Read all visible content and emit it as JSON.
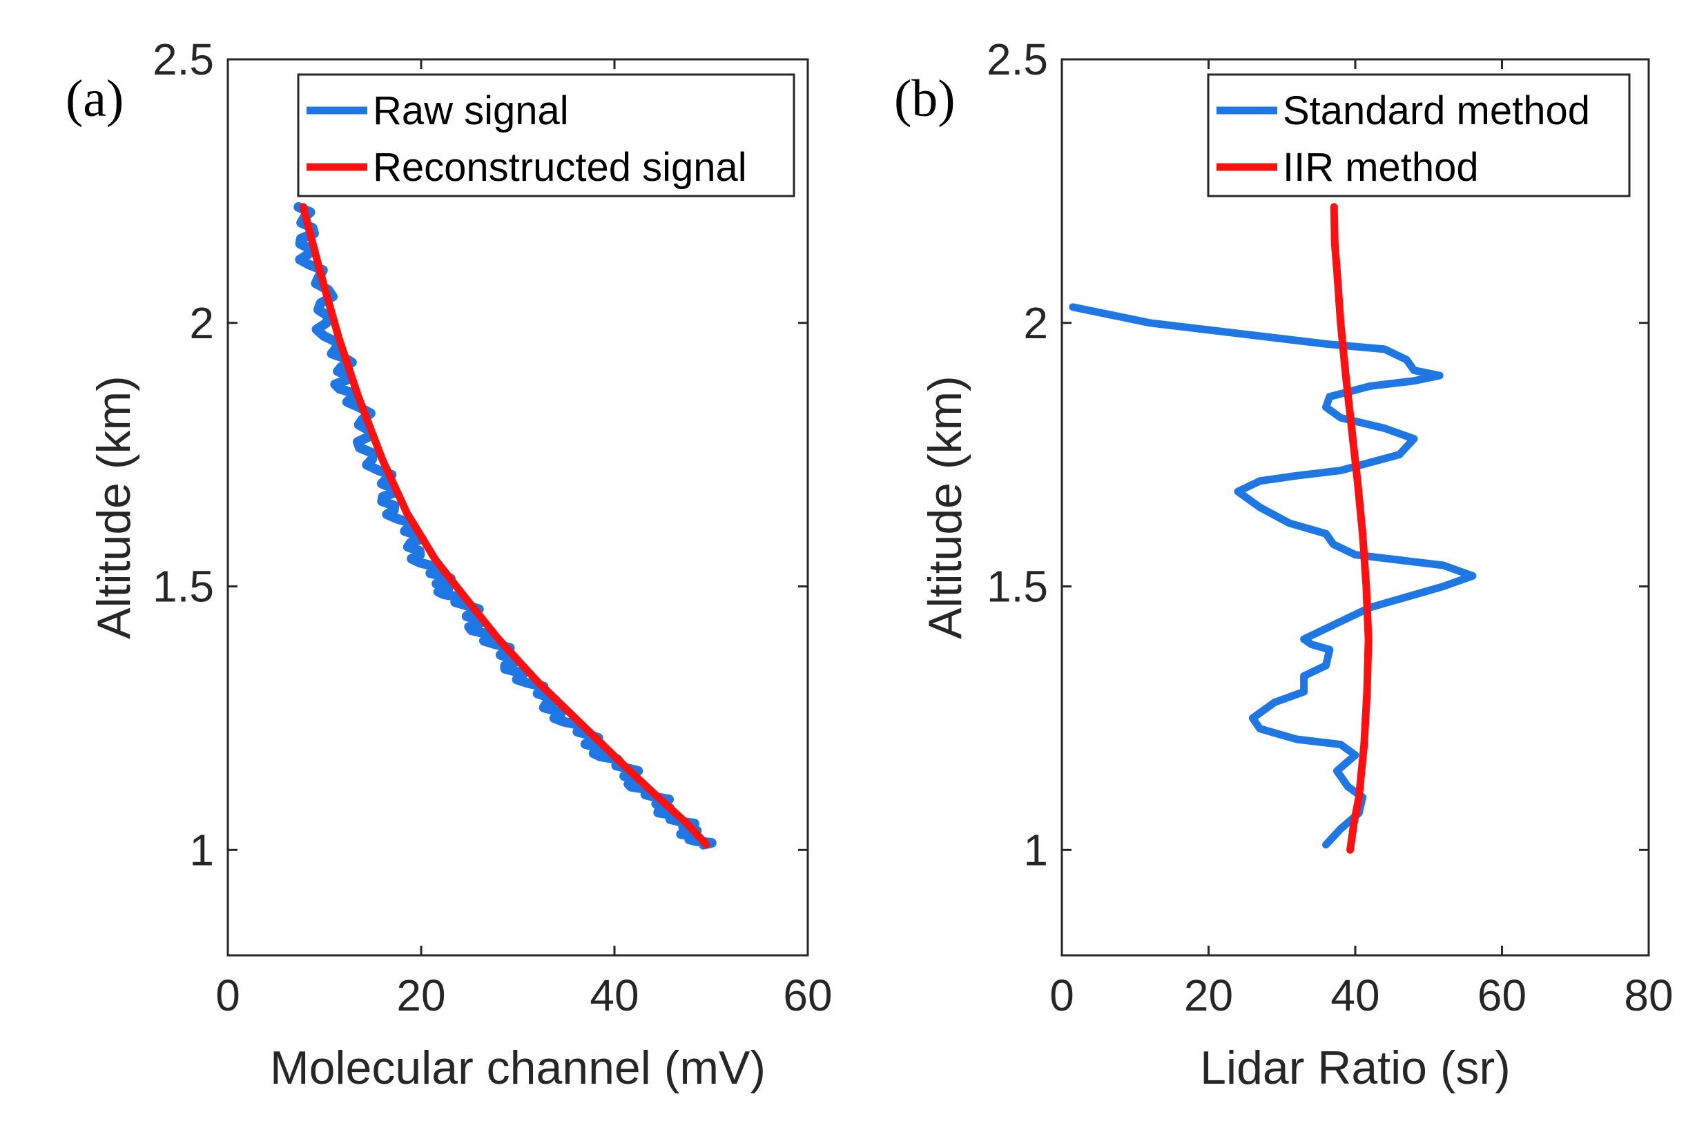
{
  "chart_data": [
    {
      "panel_label": "(a)",
      "type": "line",
      "orientation": "profile",
      "xlabel": "Molecular channel (mV)",
      "ylabel": "Altitude (km)",
      "xlim": [
        0,
        60
      ],
      "ylim": [
        0.8,
        2.5
      ],
      "xticks": [
        "0",
        "20",
        "40",
        "60"
      ],
      "yticks": [
        "1",
        "1.5",
        "2",
        "2.5"
      ],
      "legend_position": "top-right",
      "series": [
        {
          "name": "Raw signal",
          "color": "#1f77e4",
          "noisy": true,
          "x": [
            7.3,
            9,
            11,
            13,
            15.5,
            18,
            21,
            24,
            27.5,
            31.5,
            36,
            40.5,
            44,
            47,
            49.2
          ],
          "y": [
            2.22,
            2.1,
            1.95,
            1.85,
            1.72,
            1.62,
            1.53,
            1.47,
            1.39,
            1.31,
            1.23,
            1.16,
            1.1,
            1.05,
            1.01
          ]
        },
        {
          "name": "Reconstructed signal",
          "color": "#ff1010",
          "noisy": false,
          "x": [
            7.8,
            9.5,
            11.5,
            13.5,
            16,
            18.5,
            21.5,
            24.5,
            28,
            32,
            36.5,
            41,
            44.5,
            47.5,
            49.5
          ],
          "y": [
            2.22,
            2.1,
            1.97,
            1.86,
            1.74,
            1.64,
            1.55,
            1.48,
            1.4,
            1.32,
            1.24,
            1.16,
            1.1,
            1.05,
            1.01
          ]
        }
      ]
    },
    {
      "panel_label": "(b)",
      "type": "line",
      "orientation": "profile",
      "xlabel": "Lidar Ratio (sr)",
      "ylabel": "Altitude (km)",
      "xlim": [
        0,
        80
      ],
      "ylim": [
        0.8,
        2.5
      ],
      "xticks": [
        "0",
        "20",
        "40",
        "60",
        "80"
      ],
      "yticks": [
        "1",
        "1.5",
        "2",
        "2.5"
      ],
      "legend_position": "top-right",
      "series": [
        {
          "name": "Standard method",
          "color": "#1f77e4",
          "noisy": false,
          "x": [
            36,
            38,
            40.5,
            41,
            39,
            37.5,
            40,
            38,
            32,
            27,
            26,
            29,
            33,
            33,
            36,
            36.5,
            34,
            33,
            36,
            42,
            52,
            56,
            52,
            40,
            37,
            36,
            31,
            27,
            24,
            27,
            32,
            38,
            46,
            48,
            44,
            38,
            36,
            36.5,
            42,
            48,
            51.5,
            48,
            47,
            44,
            36,
            12,
            1.5
          ],
          "y": [
            1.01,
            1.04,
            1.07,
            1.1,
            1.12,
            1.15,
            1.18,
            1.2,
            1.21,
            1.23,
            1.25,
            1.28,
            1.3,
            1.33,
            1.35,
            1.38,
            1.39,
            1.4,
            1.42,
            1.46,
            1.5,
            1.52,
            1.54,
            1.56,
            1.58,
            1.6,
            1.62,
            1.65,
            1.68,
            1.7,
            1.71,
            1.72,
            1.75,
            1.78,
            1.8,
            1.82,
            1.84,
            1.86,
            1.88,
            1.89,
            1.9,
            1.91,
            1.93,
            1.95,
            1.96,
            2.0,
            2.03
          ]
        },
        {
          "name": "IIR method",
          "color": "#ff1010",
          "noisy": false,
          "x": [
            39.3,
            39.8,
            40.5,
            41.2,
            41.6,
            41.8,
            41.5,
            41,
            40.3,
            39.5,
            38.7,
            38,
            37.5,
            37.2,
            37.1
          ],
          "y": [
            1.0,
            1.05,
            1.1,
            1.2,
            1.3,
            1.4,
            1.5,
            1.6,
            1.7,
            1.8,
            1.9,
            2.0,
            2.1,
            2.15,
            2.22
          ]
        }
      ]
    }
  ]
}
